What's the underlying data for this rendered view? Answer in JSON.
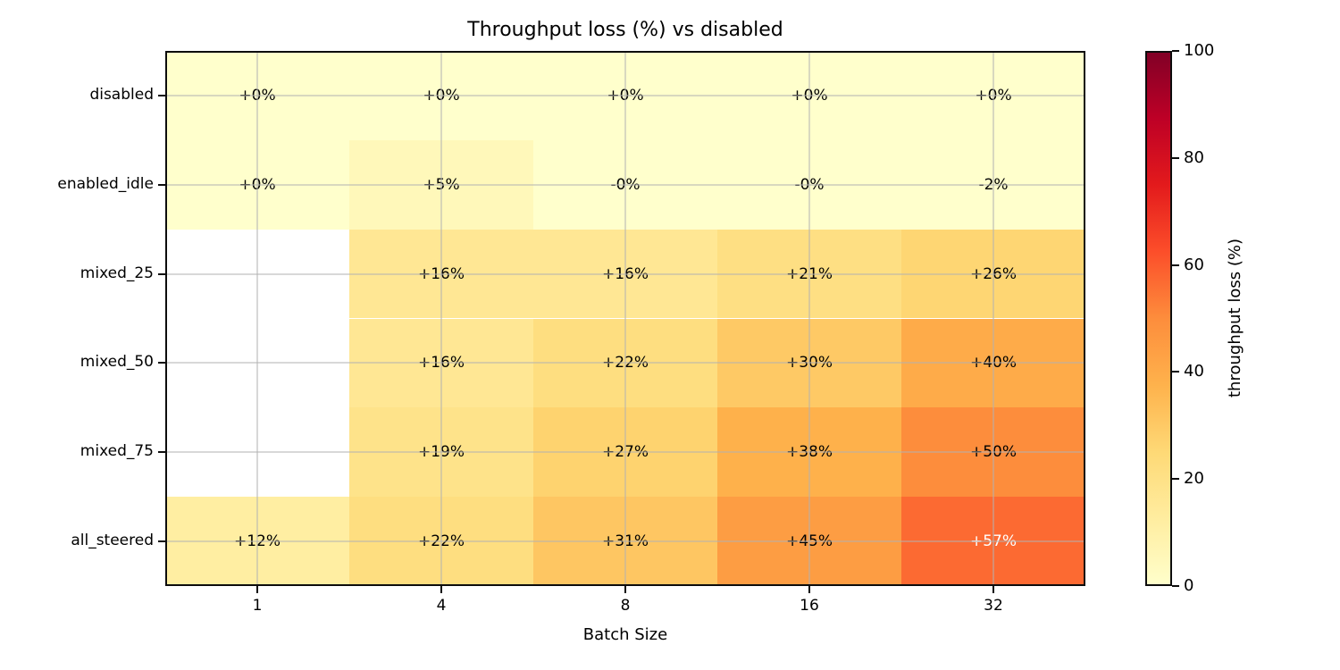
{
  "chart_data": {
    "type": "heatmap",
    "title": "Throughput loss (%) vs disabled",
    "xlabel": "Batch Size",
    "ylabel": "",
    "x_tick_labels": [
      "1",
      "4",
      "8",
      "16",
      "32"
    ],
    "y_tick_labels": [
      "disabled",
      "enabled_idle",
      "mixed_25",
      "mixed_50",
      "mixed_75",
      "all_steered"
    ],
    "grid": true,
    "missing_cell_color": "#ffffff",
    "rows": [
      {
        "category": "disabled",
        "labels": [
          "+0%",
          "+0%",
          "+0%",
          "+0%",
          "+0%"
        ],
        "values": [
          0,
          0,
          0,
          0,
          0
        ],
        "colors": [
          "#ffffcc",
          "#ffffcc",
          "#ffffcc",
          "#ffffcc",
          "#ffffcc"
        ],
        "text_colors": [
          "#000000",
          "#000000",
          "#000000",
          "#000000",
          "#000000"
        ]
      },
      {
        "category": "enabled_idle",
        "labels": [
          "+0%",
          "+5%",
          "-0%",
          "-0%",
          "-2%"
        ],
        "values": [
          0,
          5,
          0,
          0,
          -2
        ],
        "colors": [
          "#ffffcc",
          "#fff8ba",
          "#ffffcc",
          "#ffffcc",
          "#ffffcc"
        ],
        "text_colors": [
          "#000000",
          "#000000",
          "#000000",
          "#000000",
          "#000000"
        ]
      },
      {
        "category": "mixed_25",
        "labels": [
          null,
          "+16%",
          "+16%",
          "+21%",
          "+26%"
        ],
        "values": [
          null,
          16,
          16,
          21,
          26
        ],
        "colors": [
          null,
          "#ffe794",
          "#ffe794",
          "#fedf83",
          "#fed673"
        ],
        "text_colors": [
          null,
          "#000000",
          "#000000",
          "#000000",
          "#000000"
        ]
      },
      {
        "category": "mixed_50",
        "labels": [
          null,
          "+16%",
          "+22%",
          "+30%",
          "+40%"
        ],
        "values": [
          null,
          16,
          22,
          30,
          40
        ],
        "colors": [
          null,
          "#ffe794",
          "#fede80",
          "#fec965",
          "#feab49"
        ],
        "text_colors": [
          null,
          "#000000",
          "#000000",
          "#000000",
          "#000000"
        ]
      },
      {
        "category": "mixed_75",
        "labels": [
          null,
          "+19%",
          "+27%",
          "+38%",
          "+50%"
        ],
        "values": [
          null,
          19,
          27,
          38,
          50
        ],
        "colors": [
          null,
          "#fee38a",
          "#fed36f",
          "#feb14b",
          "#fd8d3c"
        ],
        "text_colors": [
          null,
          "#000000",
          "#000000",
          "#000000",
          "#000000"
        ]
      },
      {
        "category": "all_steered",
        "labels": [
          "+12%",
          "+22%",
          "+31%",
          "+45%",
          "+57%"
        ],
        "values": [
          12,
          22,
          31,
          45,
          57
        ],
        "colors": [
          "#ffeea2",
          "#fede80",
          "#fec662",
          "#fd9d43",
          "#fc6a32"
        ],
        "text_colors": [
          "#000000",
          "#000000",
          "#000000",
          "#000000",
          "#ffffff"
        ]
      }
    ],
    "colorbar": {
      "label": "throughput loss (%)",
      "min": 0,
      "max": 100,
      "ticks": [
        0,
        20,
        40,
        60,
        80,
        100
      ],
      "colormap": "YlOrRd",
      "gradient_stops": [
        {
          "pos": 0,
          "color": "#ffffcc"
        },
        {
          "pos": 12.5,
          "color": "#ffeda0"
        },
        {
          "pos": 25,
          "color": "#fed976"
        },
        {
          "pos": 37.5,
          "color": "#feb24c"
        },
        {
          "pos": 50,
          "color": "#fd8d3c"
        },
        {
          "pos": 62.5,
          "color": "#fc4e2a"
        },
        {
          "pos": 75,
          "color": "#e31a1c"
        },
        {
          "pos": 87.5,
          "color": "#bd0026"
        },
        {
          "pos": 100,
          "color": "#800026"
        }
      ]
    }
  }
}
